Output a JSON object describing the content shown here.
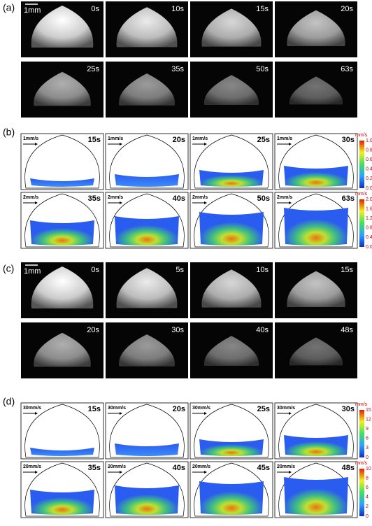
{
  "panels": [
    {
      "label": "(a)",
      "scale_bar": "1mm",
      "rows": [
        {
          "frames": [
            "0s",
            "10s",
            "15s",
            "20s"
          ]
        },
        {
          "frames": [
            "25s",
            "35s",
            "50s",
            "63s"
          ]
        }
      ]
    },
    {
      "label": "(b)",
      "rows": [
        {
          "velocity_scale": "1mm/s",
          "frames": [
            "15s",
            "20s",
            "25s",
            "30s"
          ],
          "colorbar": {
            "unit": "mm/s",
            "ticks": [
              "1.0",
              "0.8",
              "0.6",
              "0.4",
              "0.2",
              "0.0"
            ]
          }
        },
        {
          "velocity_scale": "2mm/s",
          "frames": [
            "35s",
            "40s",
            "50s",
            "63s"
          ],
          "colorbar": {
            "unit": "mm/s",
            "ticks": [
              "2.0",
              "1.6",
              "1.2",
              "0.8",
              "0.4",
              "0.0"
            ]
          }
        }
      ]
    },
    {
      "label": "(c)",
      "scale_bar": "1mm",
      "rows": [
        {
          "frames": [
            "0s",
            "5s",
            "10s",
            "15s"
          ]
        },
        {
          "frames": [
            "20s",
            "30s",
            "40s",
            "48s"
          ]
        }
      ]
    },
    {
      "label": "(d)",
      "rows": [
        {
          "velocity_scale": "30mm/s",
          "frames": [
            "15s",
            "20s",
            "25s",
            "30s"
          ],
          "colorbar": {
            "unit": "mm/s",
            "ticks": [
              "15",
              "12",
              "9",
              "6",
              "3",
              "0"
            ]
          }
        },
        {
          "velocity_scale": "20mm/s",
          "frames": [
            "35s",
            "40s",
            "45s",
            "48s"
          ],
          "colorbar": {
            "unit": "mm/s",
            "ticks": [
              "10",
              "8",
              "6",
              "4",
              "2",
              "0"
            ]
          }
        }
      ]
    }
  ]
}
